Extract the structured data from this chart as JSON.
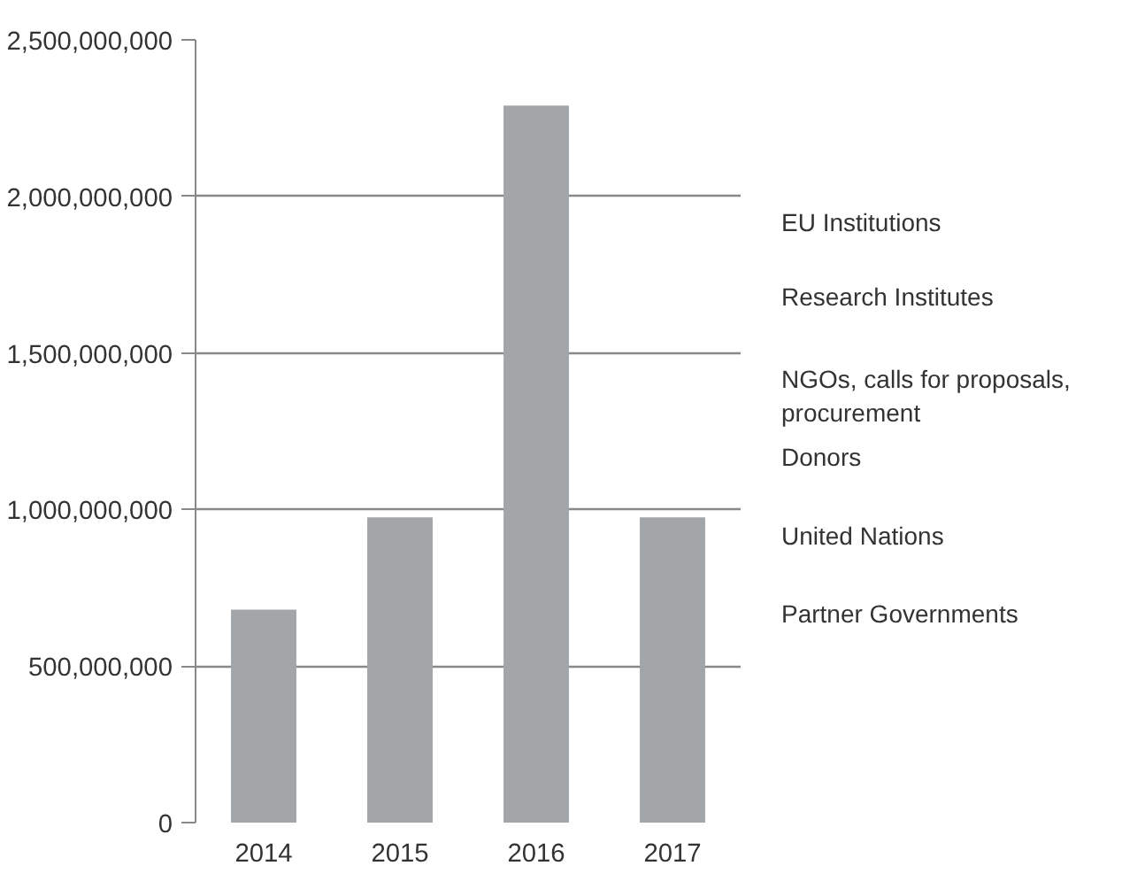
{
  "chart_data": {
    "type": "bar",
    "categories": [
      "2014",
      "2015",
      "2016",
      "2017"
    ],
    "values": [
      680000000,
      975000000,
      2290000000,
      975000000
    ],
    "color": "#a3a6a9",
    "ylim": [
      0,
      2500000000
    ],
    "yticks": [
      {
        "value": 0,
        "label": "0"
      },
      {
        "value": 500000000,
        "label": "500,000,000"
      },
      {
        "value": 1000000000,
        "label": "1,000,000,000"
      },
      {
        "value": 1500000000,
        "label": "1,500,000,000"
      },
      {
        "value": 2000000000,
        "label": "2,000,000,000"
      },
      {
        "value": 2500000000,
        "label": "2,500,000,000"
      }
    ],
    "grid": "y",
    "annotations": [
      "EU Institutions",
      "Research Institutes",
      "NGOs, calls for proposals,\nprocurement",
      "Donors",
      "United Nations",
      "Partner Governments"
    ]
  }
}
